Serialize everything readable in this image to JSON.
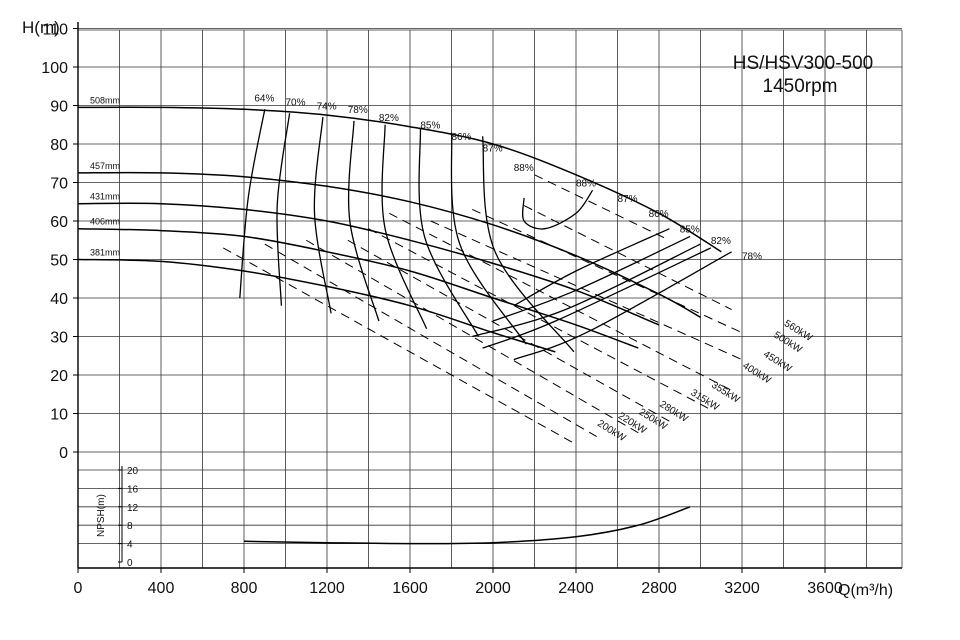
{
  "chart_data": {
    "type": "line",
    "title": "HS/HSV300-500",
    "subtitle": "1450rpm",
    "xlabel": "Q(m³/h)",
    "ylabel": "H(m)",
    "npsh_label": "NPSH(m)",
    "xlim": [
      0,
      4000
    ],
    "ylim": [
      0,
      120
    ],
    "grid": true,
    "x_ticks": [
      "0",
      "400",
      "800",
      "1200",
      "1600",
      "2000",
      "2400",
      "2800",
      "3200",
      "3600"
    ],
    "y_ticks": [
      "0",
      "10",
      "20",
      "30",
      "40",
      "50",
      "60",
      "70",
      "80",
      "90",
      "100",
      "110"
    ],
    "npsh_ticks": [
      "0",
      "4",
      "8",
      "12",
      "16",
      "20"
    ],
    "impeller_curves": [
      {
        "label": "508mm",
        "points": [
          [
            0,
            89.5
          ],
          [
            400,
            89.5
          ],
          [
            800,
            89
          ],
          [
            1200,
            87.5
          ],
          [
            1600,
            84.5
          ],
          [
            2000,
            80
          ],
          [
            2400,
            72
          ],
          [
            2800,
            62
          ],
          [
            3100,
            52
          ]
        ]
      },
      {
        "label": "457mm",
        "points": [
          [
            0,
            72.5
          ],
          [
            400,
            72.5
          ],
          [
            800,
            71.5
          ],
          [
            1200,
            69
          ],
          [
            1600,
            65
          ],
          [
            2000,
            59
          ],
          [
            2400,
            51
          ],
          [
            2800,
            41
          ],
          [
            3000,
            35
          ]
        ]
      },
      {
        "label": "431mm",
        "points": [
          [
            0,
            64.5
          ],
          [
            400,
            64.5
          ],
          [
            800,
            63
          ],
          [
            1200,
            60
          ],
          [
            1600,
            55
          ],
          [
            2000,
            49
          ],
          [
            2400,
            42
          ],
          [
            2800,
            33
          ]
        ]
      },
      {
        "label": "406mm",
        "points": [
          [
            0,
            58
          ],
          [
            400,
            57.5
          ],
          [
            800,
            56
          ],
          [
            1200,
            52
          ],
          [
            1600,
            47
          ],
          [
            2000,
            40
          ],
          [
            2400,
            33
          ],
          [
            2700,
            27
          ]
        ]
      },
      {
        "label": "381mm",
        "points": [
          [
            0,
            50
          ],
          [
            400,
            49.5
          ],
          [
            800,
            47
          ],
          [
            1200,
            43
          ],
          [
            1600,
            38
          ],
          [
            2000,
            31
          ],
          [
            2300,
            26
          ]
        ]
      }
    ],
    "efficiency_labels": [
      "64%",
      "70%",
      "74%",
      "78%",
      "82%",
      "85%",
      "86%",
      "87%",
      "88%",
      "88%",
      "87%",
      "86%",
      "85%",
      "82%",
      "78%"
    ],
    "power_labels": [
      "560kW",
      "500kW",
      "450kW",
      "400kW",
      "355kW",
      "315kW",
      "280kW",
      "250kW",
      "220kW",
      "200kW"
    ],
    "npsh_curve": {
      "points": [
        [
          800,
          4.5
        ],
        [
          1200,
          4.2
        ],
        [
          1600,
          4.0
        ],
        [
          2000,
          4.2
        ],
        [
          2400,
          5.5
        ],
        [
          2700,
          8.0
        ],
        [
          2950,
          12.0
        ]
      ]
    }
  }
}
